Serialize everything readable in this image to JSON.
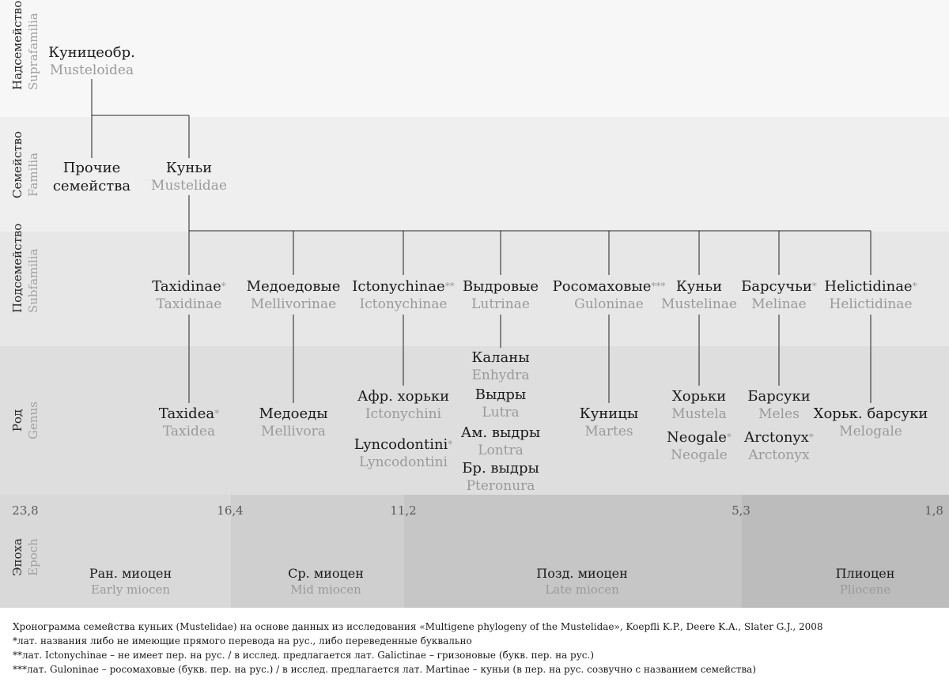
{
  "rows": {
    "supra": {
      "ru": "Надсемейство",
      "la": "Suprafamilia"
    },
    "family": {
      "ru": "Семейство",
      "la": "Familia"
    },
    "sub": {
      "ru": "Подсемейство",
      "la": "Subfamilia"
    },
    "genus": {
      "ru": "Род",
      "la": "Genus"
    },
    "epoch": {
      "ru": "Эпоха",
      "la": "Epoch"
    }
  },
  "root": {
    "ru": "Куницеобр.",
    "la": "Musteloidea"
  },
  "families": [
    {
      "ru": "Прочие семейства",
      "la": ""
    },
    {
      "ru": "Куньи",
      "la": "Mustelidae"
    }
  ],
  "subfamilies": [
    {
      "ru": "Taxidinae",
      "mark": "*",
      "la": "Taxidinae"
    },
    {
      "ru": "Медоедовые",
      "mark": "",
      "la": "Mellivorinae"
    },
    {
      "ru": "Ictonychinae",
      "mark": "**",
      "la": "Ictonychinae"
    },
    {
      "ru": "Выдровые",
      "mark": "",
      "la": "Lutrinae"
    },
    {
      "ru": "Росомаховые",
      "mark": "***",
      "la": "Guloninae"
    },
    {
      "ru": "Куньи",
      "mark": "",
      "la": "Mustelinae"
    },
    {
      "ru": "Барсучьи",
      "mark": "*",
      "la": "Melinae"
    },
    {
      "ru": "Helictidinae",
      "mark": "*",
      "la": "Helictidinae"
    }
  ],
  "genera": {
    "taxidinae": [
      {
        "ru": "Taxidea",
        "mark": "*",
        "la": "Taxidea"
      }
    ],
    "mellivorinae": [
      {
        "ru": "Медоеды",
        "mark": "",
        "la": "Mellivora"
      }
    ],
    "ictonychinae": [
      {
        "ru": "Афр. хорьки",
        "mark": "",
        "la": "Ictonychini"
      },
      {
        "ru": "Lyncodontini",
        "mark": "*",
        "la": "Lyncodontini"
      }
    ],
    "lutrinae": [
      {
        "ru": "Каланы",
        "mark": "",
        "la": "Enhydra"
      },
      {
        "ru": "Выдры",
        "mark": "",
        "la": "Lutra"
      },
      {
        "ru": "Ам. выдры",
        "mark": "",
        "la": "Lontra"
      },
      {
        "ru": "Бр. выдры",
        "mark": "",
        "la": "Pteronura"
      }
    ],
    "guloninae": [
      {
        "ru": "Куницы",
        "mark": "",
        "la": "Martes"
      }
    ],
    "mustelinae": [
      {
        "ru": "Хорьки",
        "mark": "",
        "la": "Mustela"
      },
      {
        "ru": "Neogale",
        "mark": "*",
        "la": "Neogale"
      }
    ],
    "melinae": [
      {
        "ru": "Барсуки",
        "mark": "",
        "la": "Meles"
      },
      {
        "ru": "Arctonyx",
        "mark": "*",
        "la": "Arctonyx"
      }
    ],
    "helictidinae": [
      {
        "ru": "Хорьк. барсуки",
        "mark": "",
        "la": "Melogale"
      }
    ]
  },
  "ticks": [
    "23,8",
    "16,4",
    "11,2",
    "5,3",
    "1,8"
  ],
  "epochs": [
    {
      "ru": "Ран. миоцен",
      "la": "Early miocen"
    },
    {
      "ru": "Ср. миоцен",
      "la": "Mid miocen"
    },
    {
      "ru": "Позд. миоцен",
      "la": "Late miocen"
    },
    {
      "ru": "Плиоцен",
      "la": "Pliocene"
    }
  ],
  "colors": {
    "early": "#d9d9d9",
    "mid": "#cfcfcf",
    "late": "#c6c6c6",
    "pliocene": "#bcbcbc"
  },
  "notes": [
    "Хронограмма семейства куньих (Mustelidae) на основе данных из исследования «Multigene phylogeny of the Mustelidae», Koepfli K.P., Deere K.A., Slater G.J., 2008",
    "*лат. названия либо не имеющие прямого перевода на рус., либо переведенные буквально",
    "**лат. Ictonychinae – не имеет пер. на рус.  / в исслед. предлагается лат. Galictinae – гризоновые (букв. пер. на рус.)",
    "***лат. Guloninae – росомаховые (букв. пер. на рус.)  / в исслед. предлагается лат. Martinae – куньи (в пер. на рус. созвучно с названием семейства)"
  ]
}
